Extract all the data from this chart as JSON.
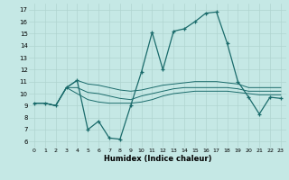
{
  "xlabel": "Humidex (Indice chaleur)",
  "bg_color": "#c5e8e5",
  "grid_color": "#b0d4d0",
  "line_color": "#1a6b6b",
  "xlim": [
    -0.5,
    23.5
  ],
  "ylim": [
    5.5,
    17.5
  ],
  "yticks": [
    6,
    7,
    8,
    9,
    10,
    11,
    12,
    13,
    14,
    15,
    16,
    17
  ],
  "xticks": [
    0,
    1,
    2,
    3,
    4,
    5,
    6,
    7,
    8,
    9,
    10,
    11,
    12,
    13,
    14,
    15,
    16,
    17,
    18,
    19,
    20,
    21,
    22,
    23
  ],
  "main_series": [
    9.2,
    9.2,
    9.0,
    10.5,
    11.1,
    7.0,
    7.7,
    6.3,
    6.2,
    9.0,
    11.8,
    15.1,
    12.0,
    15.2,
    15.4,
    16.0,
    16.7,
    16.8,
    14.2,
    11.0,
    9.7,
    8.3,
    9.7,
    9.6
  ],
  "flat_series": [
    [
      9.2,
      9.2,
      9.0,
      10.5,
      11.1,
      10.8,
      10.7,
      10.5,
      10.3,
      10.2,
      10.3,
      10.5,
      10.7,
      10.8,
      10.9,
      11.0,
      11.0,
      11.0,
      10.9,
      10.8,
      10.5,
      10.5,
      10.5,
      10.5
    ],
    [
      9.2,
      9.2,
      9.0,
      10.5,
      10.5,
      10.1,
      10.0,
      9.8,
      9.6,
      9.5,
      9.8,
      10.0,
      10.2,
      10.4,
      10.5,
      10.5,
      10.5,
      10.5,
      10.5,
      10.4,
      10.2,
      10.2,
      10.2,
      10.2
    ],
    [
      9.2,
      9.2,
      9.0,
      10.5,
      10.0,
      9.5,
      9.3,
      9.2,
      9.2,
      9.2,
      9.3,
      9.5,
      9.8,
      10.0,
      10.1,
      10.2,
      10.2,
      10.2,
      10.2,
      10.1,
      10.0,
      9.9,
      9.9,
      9.9
    ]
  ]
}
